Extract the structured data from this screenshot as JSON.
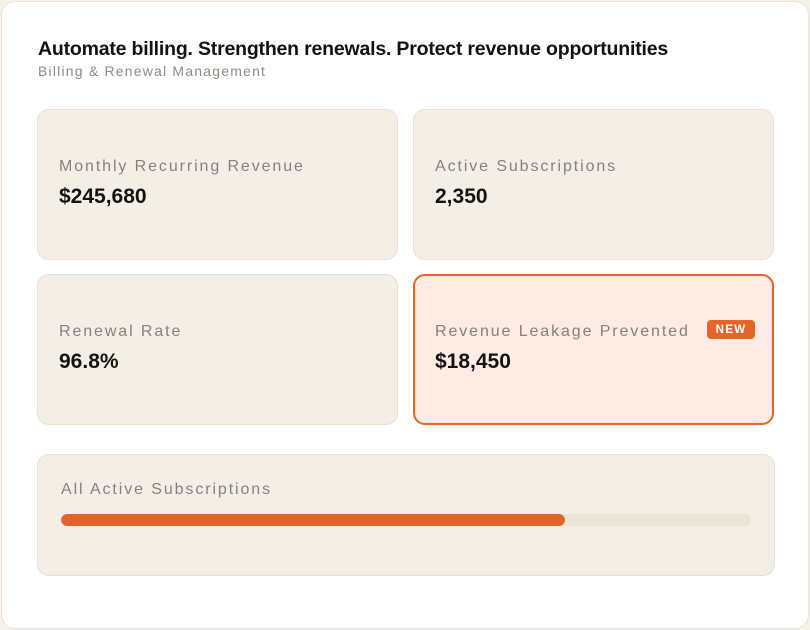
{
  "header": {
    "title": "Automate billing. Strengthen renewals. Protect revenue opportunities",
    "subtitle": "Billing & Renewal Management"
  },
  "metrics": [
    {
      "label": "Monthly Recurring Revenue",
      "value": "$245,680"
    },
    {
      "label": "Active Subscriptions",
      "value": "2,350"
    },
    {
      "label": "Renewal Rate",
      "value": "96.8%"
    },
    {
      "label": "Revenue Leakage Prevented",
      "value": "$18,450",
      "badge": "NEW"
    }
  ],
  "progress": {
    "label": "All Active Subscriptions",
    "fraction": 0.73
  },
  "colors": {
    "accent": "#e5642a",
    "tile_bg": "#f3efe6",
    "highlight_bg": "#feece4",
    "track": "#ebe5d8"
  }
}
